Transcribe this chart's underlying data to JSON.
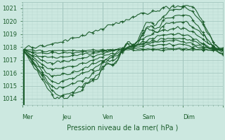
{
  "background_color": "#cce8e0",
  "grid_color_minor": "#b8d8d0",
  "grid_color_major": "#a0c4bc",
  "line_color": "#1a5c2a",
  "title": "Pression niveau de la mer( hPa )",
  "x_labels": [
    "Mer",
    "Jeu",
    "Ven",
    "Sam",
    "Dim"
  ],
  "x_label_hours": [
    0,
    48,
    96,
    144,
    192
  ],
  "day_separator_hours": [
    0,
    48,
    96,
    144,
    192,
    240
  ],
  "ylim": [
    1013.5,
    1021.5
  ],
  "yticks": [
    1014,
    1015,
    1016,
    1017,
    1018,
    1019,
    1020,
    1021
  ],
  "total_hours": 240,
  "figsize": [
    3.2,
    2.0
  ],
  "dpi": 100
}
